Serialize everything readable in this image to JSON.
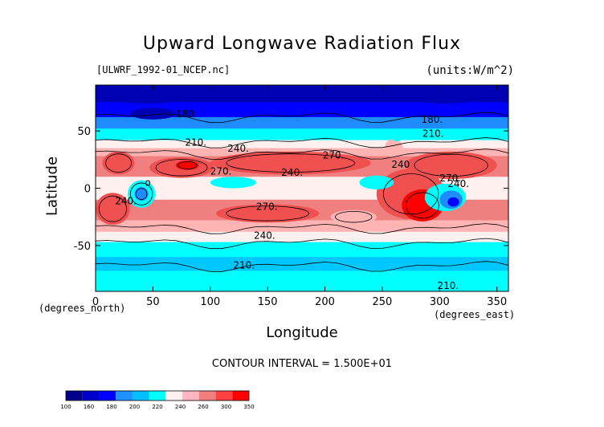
{
  "chart_data": {
    "type": "heatmap",
    "title": "Upward Longwave Radiation Flux",
    "subtitle_left": "[ULWRF_1992-01_NCEP.nc]",
    "subtitle_right": "(units:W/m^2)",
    "xlabel": "Longitude",
    "ylabel": "Latitude",
    "x_units": "(degrees_east)",
    "y_units": "(degrees_north)",
    "xlim": [
      0,
      360
    ],
    "ylim": [
      -90,
      90
    ],
    "x_ticks": [
      0,
      50,
      100,
      150,
      200,
      250,
      300,
      350
    ],
    "y_ticks": [
      -50,
      0,
      50
    ],
    "contour_interval_text": "CONTOUR INTERVAL = 1.500E+01",
    "contour_labels": [
      {
        "text": "180.",
        "lon": 70,
        "lat": 62
      },
      {
        "text": "210.",
        "lon": 78,
        "lat": 37
      },
      {
        "text": "240.",
        "lon": 115,
        "lat": 32
      },
      {
        "text": "270.",
        "lon": 100,
        "lat": 12
      },
      {
        "text": "240.",
        "lon": 162,
        "lat": 11
      },
      {
        "text": "270.",
        "lon": 198,
        "lat": 26
      },
      {
        "text": "240",
        "lon": 258,
        "lat": 18
      },
      {
        "text": "270.",
        "lon": 300,
        "lat": 6
      },
      {
        "text": "240.",
        "lon": 307,
        "lat": 1
      },
      {
        "text": "180.",
        "lon": 284,
        "lat": 57
      },
      {
        "text": "210.",
        "lon": 285,
        "lat": 45
      },
      {
        "text": "240.",
        "lon": 17,
        "lat": -14
      },
      {
        "text": "270.",
        "lon": 140,
        "lat": -19
      },
      {
        "text": "240.",
        "lon": 138,
        "lat": -44
      },
      {
        "text": "210.",
        "lon": 120,
        "lat": -70
      },
      {
        "text": "210.",
        "lon": 298,
        "lat": -88
      },
      {
        "text": "o",
        "lon": 43,
        "lat": 2
      }
    ],
    "colorbar": {
      "levels": [
        "100",
        "160",
        "180",
        "200",
        "220",
        "240",
        "260",
        "300",
        "350"
      ],
      "colors": [
        "#00008b",
        "#0000cd",
        "#0000ff",
        "#1e90ff",
        "#00bfff",
        "#00ffff",
        "#fff0f0",
        "#ffb6c1",
        "#f08080",
        "#ff4040",
        "#ff0000"
      ]
    },
    "palette": {
      "very_low": "#0000b4",
      "low": "#0000ff",
      "mid_low": "#1e8cff",
      "cyan_dark": "#00c8ff",
      "cyan": "#00ffff",
      "near_white": "#fff0f0",
      "pink": "#ffb4b4",
      "salmon": "#f08080",
      "red_mid": "#f05050",
      "red": "#ff0000"
    }
  }
}
